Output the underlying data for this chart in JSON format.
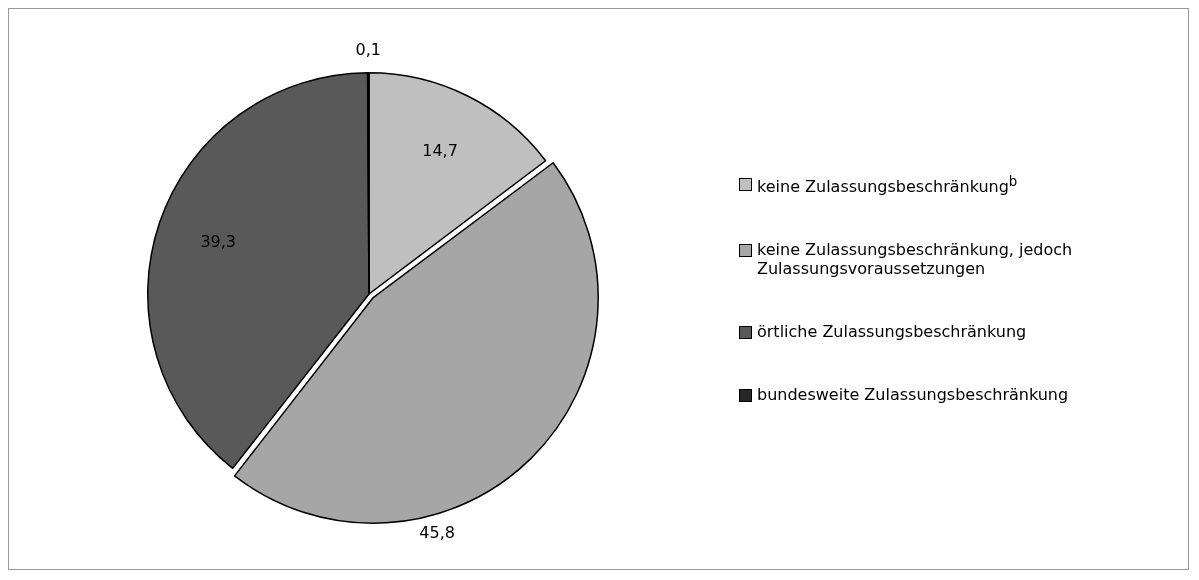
{
  "chart_data": {
    "type": "pie",
    "categories": [
      "keine Zulassungsbeschränkung$^{b}$",
      "keine Zulassungsbeschränkung, jedoch Zulassungsvoraussetzungen",
      "örtliche Zulassungsbeschränkung",
      "bundesweite Zulassungsbeschränkung"
    ],
    "values": [
      14.7,
      45.8,
      39.3,
      0.1
    ],
    "colors": [
      "#bfbfbf",
      "#a6a6a6",
      "#595959",
      "#262626"
    ],
    "value_labels": [
      "14,7",
      "45,8",
      "39,3",
      "0,1"
    ],
    "legend": "right"
  }
}
